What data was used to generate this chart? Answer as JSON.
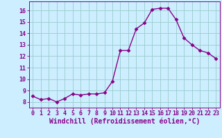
{
  "x": [
    0,
    1,
    2,
    3,
    4,
    5,
    6,
    7,
    8,
    9,
    10,
    11,
    12,
    13,
    14,
    15,
    16,
    17,
    18,
    19,
    20,
    21,
    22,
    23
  ],
  "y": [
    8.5,
    8.2,
    8.3,
    8.0,
    8.3,
    8.7,
    8.6,
    8.7,
    8.7,
    8.8,
    9.8,
    12.5,
    12.5,
    14.4,
    14.9,
    16.1,
    16.2,
    16.2,
    15.2,
    13.6,
    13.0,
    12.5,
    12.3,
    11.8
  ],
  "line_color": "#880088",
  "marker": "D",
  "marker_size": 2.5,
  "line_width": 1.0,
  "bg_color": "#cceeff",
  "grid_color": "#99cccc",
  "xlabel": "Windchill (Refroidissement éolien,°C)",
  "xlabel_color": "#880088",
  "xlabel_fontsize": 7,
  "tick_fontsize": 6,
  "ylim": [
    7.5,
    16.8
  ],
  "yticks": [
    8,
    9,
    10,
    11,
    12,
    13,
    14,
    15,
    16
  ],
  "xlim": [
    -0.5,
    23.5
  ],
  "xtick_labels": [
    "0",
    "1",
    "2",
    "3",
    "4",
    "5",
    "6",
    "7",
    "8",
    "9",
    "10",
    "11",
    "12",
    "13",
    "14",
    "15",
    "16",
    "17",
    "18",
    "19",
    "20",
    "21",
    "22",
    "23"
  ]
}
